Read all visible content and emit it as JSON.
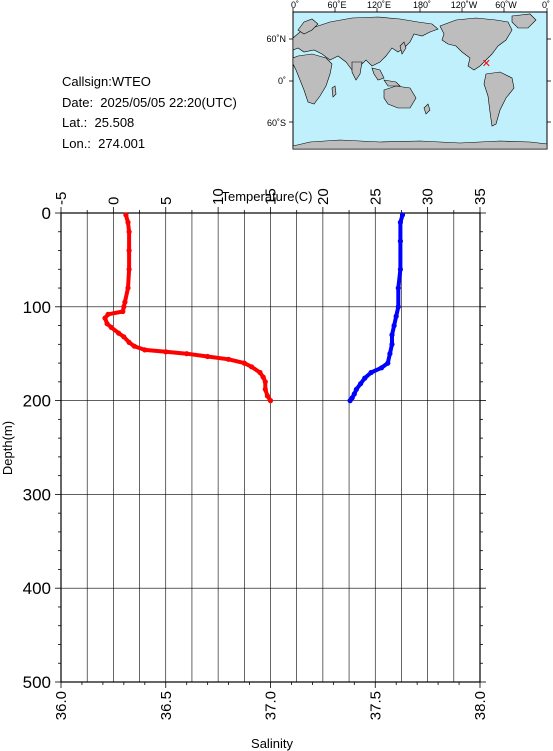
{
  "station": {
    "callsign": "Callsign:WTEO",
    "date": "Date:  2025/05/05 22:20(UTC)",
    "lat": "Lat.:  25.508",
    "lon": "Lon.:  274.001"
  },
  "map": {
    "top_labels": [
      "0˚",
      "60˚E",
      "120˚E",
      "180˚",
      "120˚W",
      "60˚W",
      "0˚"
    ],
    "lat_labels": [
      "60˚N",
      "0˚",
      "60˚S"
    ],
    "colors": {
      "ocean": "#bff0fb",
      "land": "#bdbdbd",
      "marker": "#ff0000"
    },
    "marker_lon": 274.001,
    "marker_lat": 25.508
  },
  "chart_data": {
    "type": "line",
    "top_axis_label": "Temperature(C)",
    "bottom_axis_label": "Salinity",
    "left_axis_label": "Depth(m)",
    "temperature_ticks": [
      "-5",
      "0",
      "5",
      "10",
      "15",
      "20",
      "25",
      "30",
      "35"
    ],
    "salinity_ticks": [
      "36.0",
      "36.5",
      "37.0",
      "37.5",
      "38.0"
    ],
    "depth_ticks": [
      "0",
      "100",
      "200",
      "300",
      "400",
      "500"
    ],
    "temperature_range": [
      -5,
      35
    ],
    "salinity_range": [
      36.0,
      38.0
    ],
    "depth_range": [
      0,
      500
    ],
    "grid": true,
    "series": [
      {
        "color": "#ff0000",
        "axis": "temperature",
        "points": [
          [
            1.2,
            2
          ],
          [
            1.4,
            10
          ],
          [
            1.5,
            20
          ],
          [
            1.5,
            40
          ],
          [
            1.5,
            60
          ],
          [
            1.4,
            80
          ],
          [
            1.1,
            95
          ],
          [
            1.0,
            100
          ],
          [
            0.9,
            105
          ],
          [
            -0.5,
            108
          ],
          [
            -0.8,
            112
          ],
          [
            -0.6,
            118
          ],
          [
            -0.2,
            122
          ],
          [
            0.5,
            128
          ],
          [
            1.0,
            132
          ],
          [
            1.5,
            138
          ],
          [
            2.0,
            142
          ],
          [
            3.0,
            146
          ],
          [
            5.0,
            148
          ],
          [
            7.0,
            150
          ],
          [
            9.0,
            153
          ],
          [
            11.0,
            156
          ],
          [
            12.5,
            160
          ],
          [
            13.2,
            164
          ],
          [
            14.0,
            170
          ],
          [
            14.3,
            175
          ],
          [
            14.5,
            180
          ],
          [
            14.5,
            188
          ],
          [
            14.7,
            195
          ],
          [
            15.0,
            200
          ]
        ]
      },
      {
        "color": "#0000ff",
        "axis": "salinity",
        "points": [
          [
            37.63,
            2
          ],
          [
            37.62,
            10
          ],
          [
            37.62,
            30
          ],
          [
            37.62,
            60
          ],
          [
            37.61,
            80
          ],
          [
            37.61,
            100
          ],
          [
            37.6,
            110
          ],
          [
            37.59,
            120
          ],
          [
            37.58,
            130
          ],
          [
            37.58,
            140
          ],
          [
            37.57,
            150
          ],
          [
            37.56,
            160
          ],
          [
            37.53,
            165
          ],
          [
            37.48,
            170
          ],
          [
            37.45,
            176
          ],
          [
            37.43,
            182
          ],
          [
            37.41,
            188
          ],
          [
            37.4,
            193
          ],
          [
            37.39,
            197
          ],
          [
            37.38,
            200
          ]
        ]
      }
    ]
  }
}
